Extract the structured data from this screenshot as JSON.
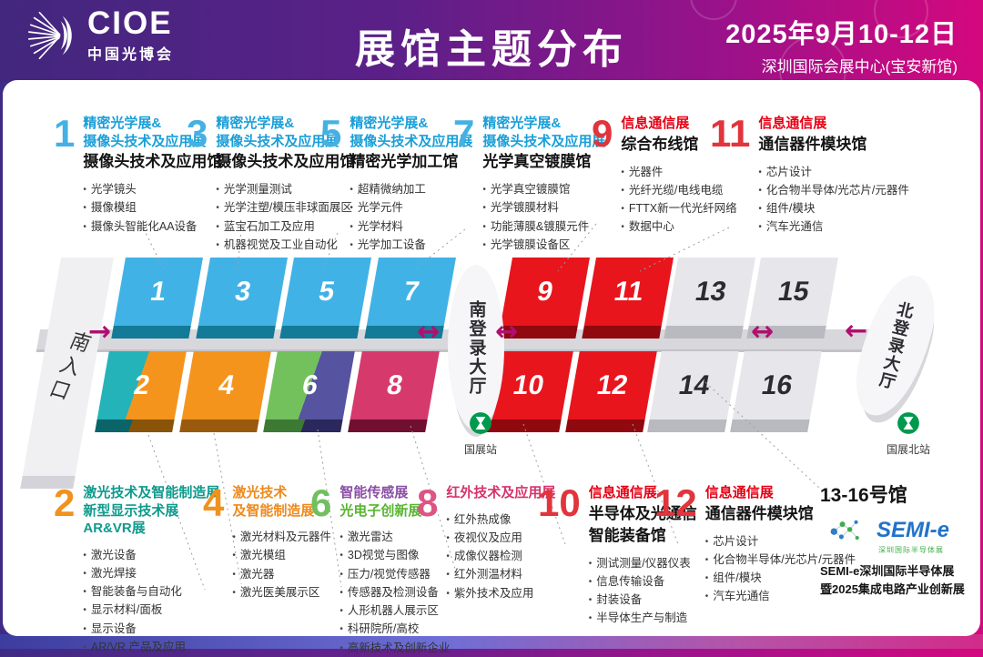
{
  "header": {
    "logo_text": "CIOE",
    "logo_sub": "中国光博会",
    "title": "展馆主题分布",
    "date": "2025年9月10-12日",
    "venue": "深圳国际会展中心(宝安新馆)"
  },
  "annotations": {
    "top": [
      {
        "num": "1",
        "num_color": "#45b1e2",
        "title_lines": [
          {
            "t": "精密光学展&",
            "c": "#1a9fd8"
          },
          {
            "t": "摄像头技术及应用展",
            "c": "#1a9fd8"
          }
        ],
        "name_lines": [
          "摄像头技术及应用馆"
        ],
        "bullets": [
          "光学镜头",
          "摄像模组",
          "摄像头智能化AA设备"
        ]
      },
      {
        "num": "3",
        "num_color": "#45b1e2",
        "title_lines": [
          {
            "t": "精密光学展&",
            "c": "#1a9fd8"
          },
          {
            "t": "摄像头技术及应用展",
            "c": "#1a9fd8"
          }
        ],
        "name_lines": [
          "摄像头技术及应用馆"
        ],
        "bullets": [
          "光学测量测试",
          "光学注塑/模压非球面展区",
          "蓝宝石加工及应用",
          "机器视觉及工业自动化"
        ]
      },
      {
        "num": "5",
        "num_color": "#45b1e2",
        "title_lines": [
          {
            "t": "精密光学展&",
            "c": "#1a9fd8"
          },
          {
            "t": "摄像头技术及应用展",
            "c": "#1a9fd8"
          }
        ],
        "name_lines": [
          "精密光学加工馆"
        ],
        "bullets": [
          "超精微纳加工",
          "光学元件",
          "光学材料",
          "光学加工设备"
        ]
      },
      {
        "num": "7",
        "num_color": "#45b1e2",
        "title_lines": [
          {
            "t": "精密光学展&",
            "c": "#1a9fd8"
          },
          {
            "t": "摄像头技术及应用展",
            "c": "#1a9fd8"
          }
        ],
        "name_lines": [
          "光学真空镀膜馆"
        ],
        "bullets": [
          "光学真空镀膜馆",
          "光学镀膜材料",
          "功能薄膜&镀膜元件",
          "光学镀膜设备区"
        ]
      },
      {
        "num": "9",
        "num_color": "#e2343c",
        "title_lines": [
          {
            "t": "信息通信展",
            "c": "#e60014"
          }
        ],
        "name_lines": [
          "综合布线馆"
        ],
        "bullets": [
          "光器件",
          "光纤光缆/电线电缆",
          "FTTX新一代光纤网络",
          "数据中心"
        ]
      },
      {
        "num": "11",
        "num_color": "#e2343c",
        "title_lines": [
          {
            "t": "信息通信展",
            "c": "#e60014"
          }
        ],
        "name_lines": [
          "通信器件模块馆"
        ],
        "bullets": [
          "芯片设计",
          "化合物半导体/光芯片/元器件",
          "组件/模块",
          "汽车光通信"
        ]
      }
    ],
    "bottom": [
      {
        "num": "2",
        "num_color": "#f0921e",
        "title_lines": [
          {
            "t": "激光技术及智能制造展",
            "c": "#0f9a8d"
          },
          {
            "t": "新型显示技术展",
            "c": "#0f9a8d"
          },
          {
            "t": "AR&VR展",
            "c": "#0f9a8d"
          }
        ],
        "name_lines": [],
        "bullets": [
          "激光设备",
          "激光焊接",
          "智能装备与自动化",
          "显示材料/面板",
          "显示设备",
          "AR/VR 产品及应用"
        ]
      },
      {
        "num": "4",
        "num_color": "#f0921e",
        "title_lines": [
          {
            "t": "激光技术",
            "c": "#ee8a1c"
          },
          {
            "t": "及智能制造展",
            "c": "#ee8a1c"
          }
        ],
        "name_lines": [],
        "bullets": [
          "激光材料及元器件",
          "激光模组",
          "激光器",
          "激光医美展示区"
        ]
      },
      {
        "num": "6",
        "num_color": "#71bf5e",
        "title_lines": [
          {
            "t": "智能传感展",
            "c": "#8a4fa5"
          },
          {
            "t": "光电子创新展",
            "c": "#58b531"
          }
        ],
        "name_lines": [],
        "bullets": [
          "激光雷达",
          "3D视觉与图像",
          "压力/视觉传感器",
          "传感器及检测设备",
          "人形机器人展示区",
          "科研院所/高校",
          "高新技术及创新企业"
        ]
      },
      {
        "num": "8",
        "num_color": "#dc5585",
        "title_lines": [
          {
            "t": "红外技术及应用展",
            "c": "#d6336c"
          }
        ],
        "name_lines": [],
        "bullets": [
          "红外热成像",
          "夜视仪及应用",
          "成像仪器检测",
          "红外测温材料",
          "紫外技术及应用"
        ]
      },
      {
        "num": "10",
        "num_color": "#e2343c",
        "title_lines": [
          {
            "t": "信息通信展",
            "c": "#e60014"
          }
        ],
        "name_lines": [
          "半导体及光通信",
          "智能装备馆"
        ],
        "bullets": [
          "测试测量/仪器仪表",
          "信息传输设备",
          "封装设备",
          "半导体生产与制造"
        ]
      },
      {
        "num": "12",
        "num_color": "#e2343c",
        "title_lines": [
          {
            "t": "信息通信展",
            "c": "#e60014"
          }
        ],
        "name_lines": [
          "通信器件模块馆"
        ],
        "bullets": [
          "芯片设计",
          "化合物半导体/光芯片/元器件",
          "组件/模块",
          "汽车光通信"
        ]
      }
    ]
  },
  "semi_section": {
    "heading": "13-16号馆",
    "logo_text": "SEMI-e",
    "logo_caption": "深圳国际半导体展",
    "line1": "SEMI-e深圳国际半导体展",
    "line2": "暨2025集成电路产业创新展"
  },
  "map": {
    "south_entrance": "南入口",
    "south_lobby": "南登录大厅",
    "north_lobby": "北登录大厅",
    "south_station": "国展站",
    "north_station": "国展北站",
    "metro_green": "#009a4e",
    "arrow_color": "#b00f70",
    "arrow_glyphs": [
      "→",
      "↔",
      "↔",
      "↔",
      "←"
    ],
    "halls": [
      {
        "num": "1",
        "row": 0,
        "col": 0,
        "top": "#41b2e6",
        "front": "#137a97",
        "text": "#ffffff"
      },
      {
        "num": "3",
        "row": 0,
        "col": 1,
        "top": "#41b2e6",
        "front": "#137a97",
        "text": "#ffffff"
      },
      {
        "num": "5",
        "row": 0,
        "col": 2,
        "top": "#41b2e6",
        "front": "#137a97",
        "text": "#ffffff"
      },
      {
        "num": "7",
        "row": 0,
        "col": 3,
        "top": "#41b2e6",
        "front": "#137a97",
        "text": "#ffffff"
      },
      {
        "num": "9",
        "row": 0,
        "col": 4,
        "top": "#e8151d",
        "front": "#90090e",
        "text": "#ffffff"
      },
      {
        "num": "11",
        "row": 0,
        "col": 5,
        "top": "#e8151d",
        "front": "#90090e",
        "text": "#ffffff"
      },
      {
        "num": "13",
        "row": 0,
        "col": 6,
        "top": "#e7e7eb",
        "front": "#b9b9c0",
        "text": "#2c2c30"
      },
      {
        "num": "15",
        "row": 0,
        "col": 7,
        "top": "#e7e7eb",
        "front": "#b9b9c0",
        "text": "#2c2c30"
      },
      {
        "num": "2",
        "row": 1,
        "col": 0,
        "top": "linear-gradient(100deg,#23b3b9 45%,#f4941d 45%)",
        "front": "linear-gradient(100deg,#0b6468 45%,#8a5408 45%)",
        "text": "#ffffff"
      },
      {
        "num": "4",
        "row": 1,
        "col": 1,
        "top": "#f4941d",
        "front": "#9a5a0d",
        "text": "#ffffff"
      },
      {
        "num": "6",
        "row": 1,
        "col": 2,
        "top": "linear-gradient(100deg,#72c15d 50%,#5653a0 50%)",
        "front": "linear-gradient(100deg,#3c7a33 50%,#2a285c 50%)",
        "text": "#ffffff"
      },
      {
        "num": "8",
        "row": 1,
        "col": 3,
        "top": "#d63a6d",
        "front": "#700f2f",
        "text": "#ffffff"
      },
      {
        "num": "10",
        "row": 1,
        "col": 4,
        "top": "#e8151d",
        "front": "#90090e",
        "text": "#ffffff"
      },
      {
        "num": "12",
        "row": 1,
        "col": 5,
        "top": "#e8151d",
        "front": "#90090e",
        "text": "#ffffff"
      },
      {
        "num": "14",
        "row": 1,
        "col": 6,
        "top": "#e7e7eb",
        "front": "#b9b9c0",
        "text": "#2c2c30"
      },
      {
        "num": "16",
        "row": 1,
        "col": 7,
        "top": "#e7e7eb",
        "front": "#b9b9c0",
        "text": "#2c2c30"
      }
    ]
  }
}
